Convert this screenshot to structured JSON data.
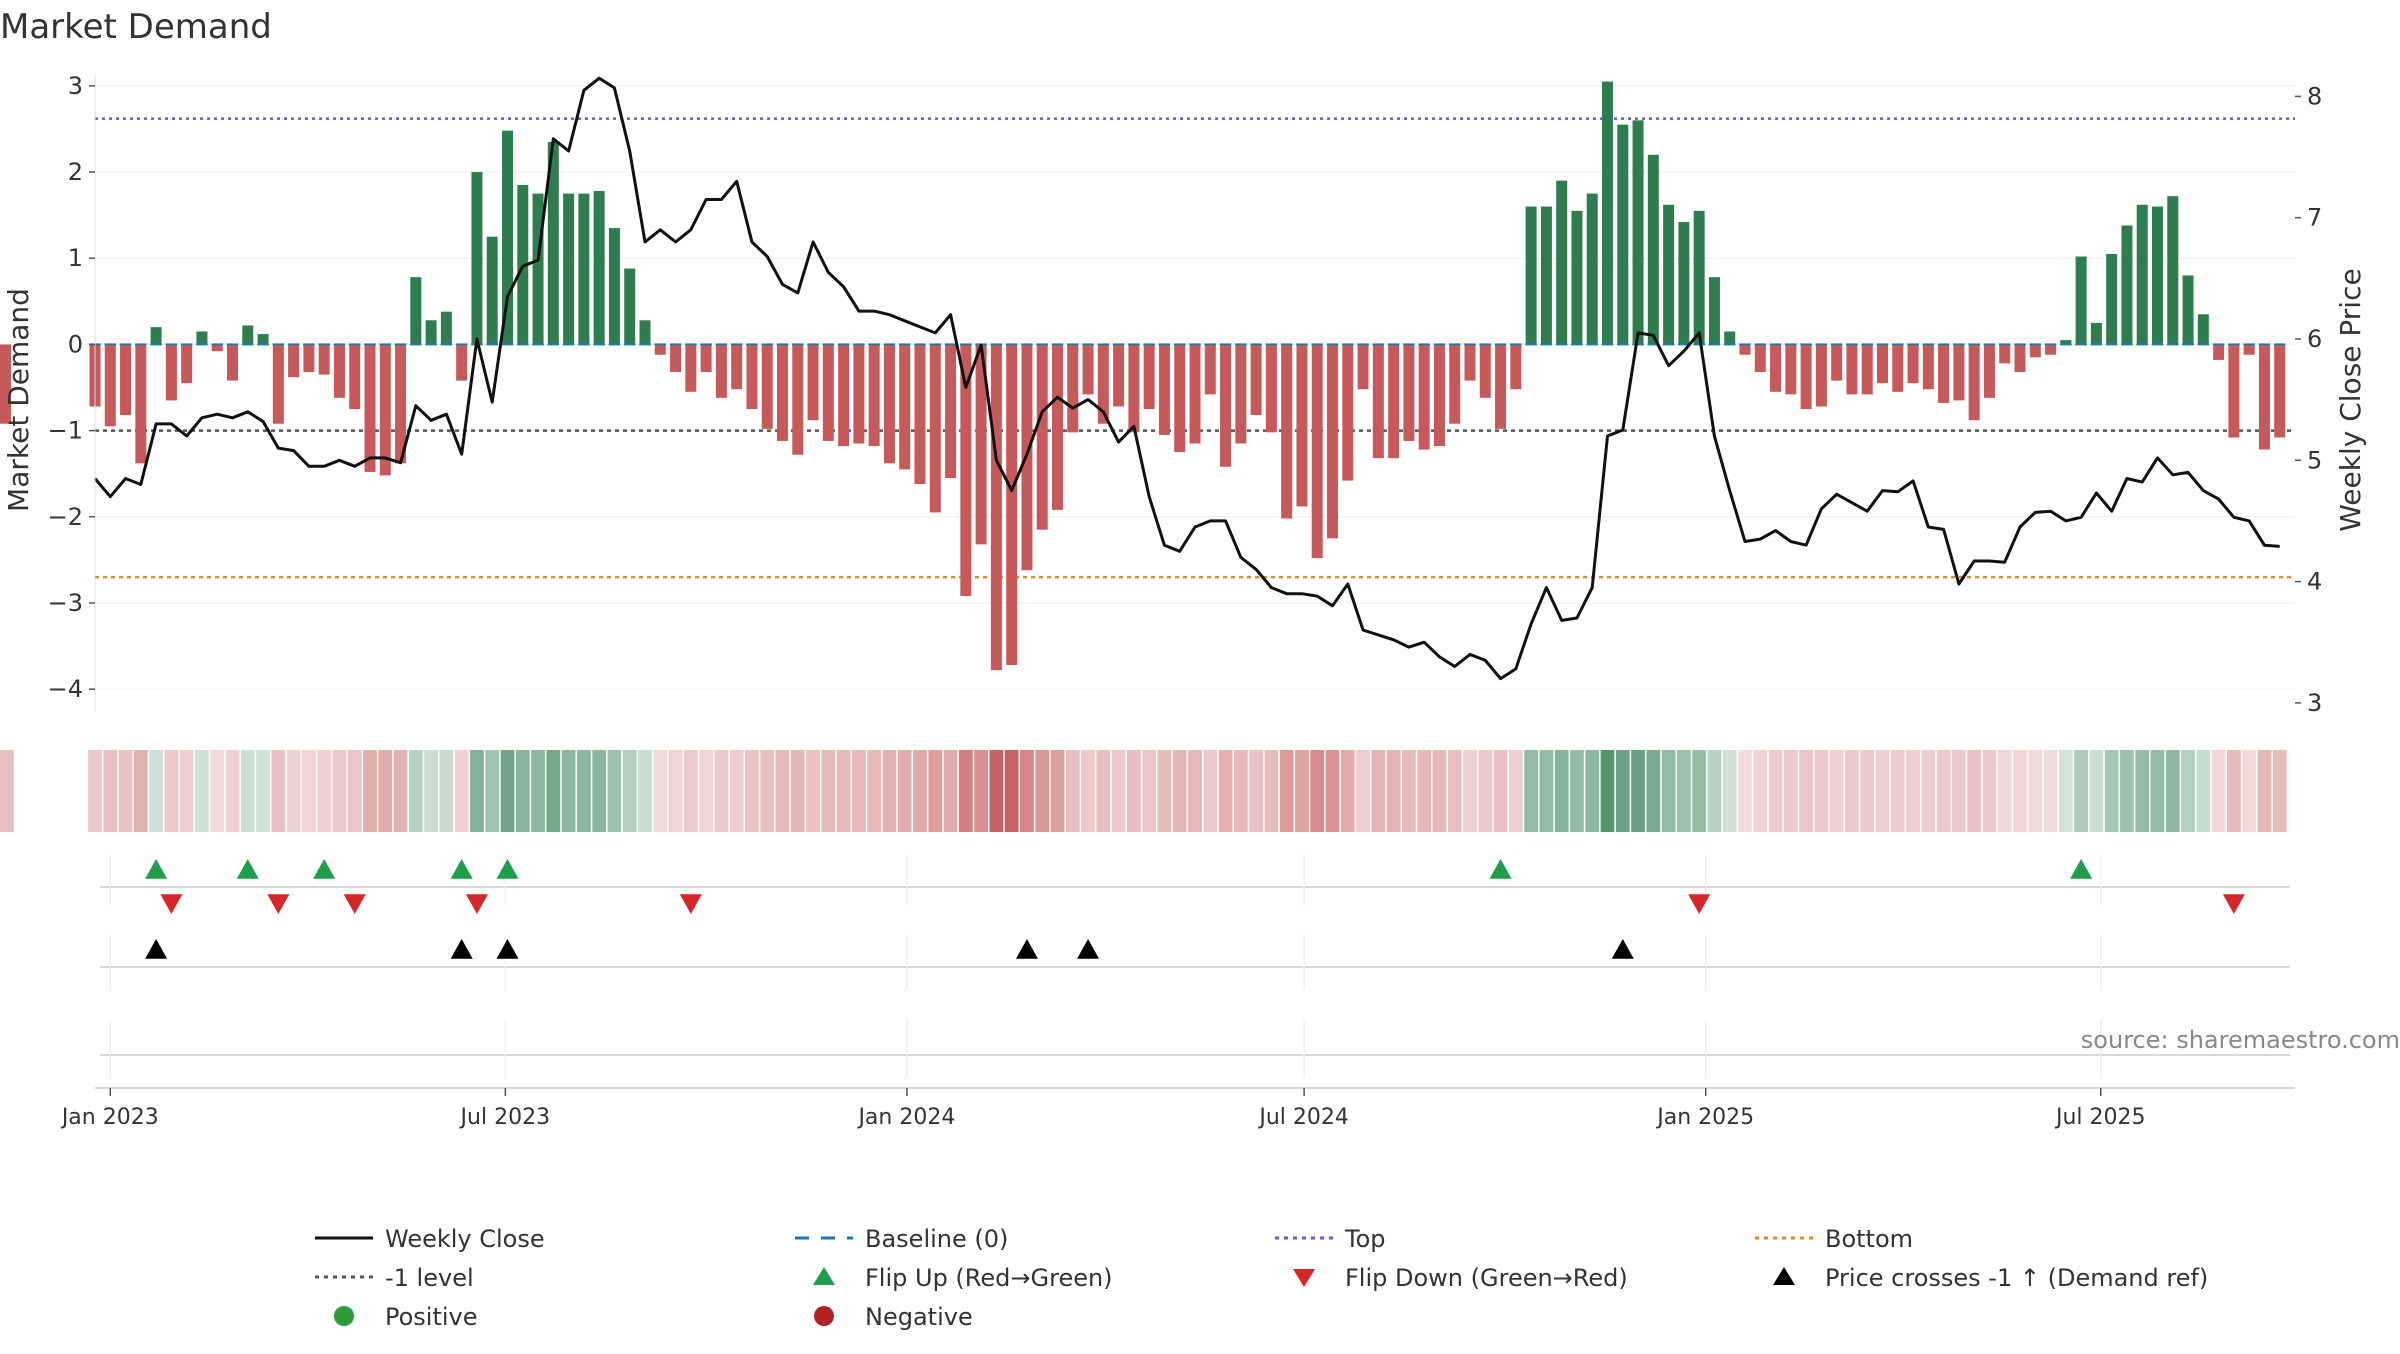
{
  "colors": {
    "positive": "#2e7d4f",
    "negative": "#c65a5a",
    "price": "#111111",
    "baseline": "#1f77b4",
    "top": "#6a5acd",
    "bottom": "#e08a1e",
    "minus_one": "#555555",
    "flip_up": "#1e9e4a",
    "flip_down": "#d62728",
    "cross": "#000000",
    "legend_positive": "#2a9d3a",
    "legend_negative": "#b22222"
  },
  "chart_data": {
    "type": "bar",
    "title": "Market Demand",
    "ylabel": "Market Demand",
    "ylabel_right": "Weekly Close Price",
    "source": "source: sharemaestro.com",
    "ylim": [
      -4.3,
      3.3
    ],
    "ylim_right": [
      2.9,
      8.3
    ],
    "yticks": [
      3,
      2,
      1,
      0,
      -1,
      -2,
      -3,
      -4
    ],
    "yticks_right": [
      8,
      7,
      6,
      5,
      4,
      3
    ],
    "x_start": "2022-12-25",
    "x_end": "2025-09-28",
    "x_ticks": [
      {
        "date": "2023-01-01",
        "label": "Jan 2023"
      },
      {
        "date": "2023-07-01",
        "label": "Jul 2023"
      },
      {
        "date": "2024-01-01",
        "label": "Jan 2024"
      },
      {
        "date": "2024-07-01",
        "label": "Jul 2024"
      },
      {
        "date": "2025-01-01",
        "label": "Jan 2025"
      },
      {
        "date": "2025-07-01",
        "label": "Jul 2025"
      }
    ],
    "reference_lines": {
      "top": 2.62,
      "bottom": -2.7,
      "minus_one": -1,
      "baseline": 0
    },
    "weeks": [
      "2022-12-25",
      "2023-01-01",
      "2023-01-08",
      "2023-01-15",
      "2023-01-22",
      "2023-01-29",
      "2023-02-05",
      "2023-02-12",
      "2023-02-19",
      "2023-02-26",
      "2023-03-05",
      "2023-03-12",
      "2023-03-19",
      "2023-03-26",
      "2023-04-02",
      "2023-04-09",
      "2023-04-16",
      "2023-04-23",
      "2023-04-30",
      "2023-05-07",
      "2023-05-14",
      "2023-05-21",
      "2023-05-28",
      "2023-06-04",
      "2023-06-11",
      "2023-06-18",
      "2023-06-25",
      "2023-07-02",
      "2023-07-09",
      "2023-07-16",
      "2023-07-23",
      "2023-07-30",
      "2023-08-06",
      "2023-08-13",
      "2023-08-20",
      "2023-08-27",
      "2023-09-03",
      "2023-09-10",
      "2023-09-17",
      "2023-09-24",
      "2023-10-01",
      "2023-10-08",
      "2023-10-15",
      "2023-10-22",
      "2023-10-29",
      "2023-11-05",
      "2023-11-12",
      "2023-11-19",
      "2023-11-26",
      "2023-12-03",
      "2023-12-10",
      "2023-12-17",
      "2023-12-24",
      "2023-12-31",
      "2024-01-07",
      "2024-01-14",
      "2024-01-21",
      "2024-01-28",
      "2024-02-04",
      "2024-02-11",
      "2024-02-18",
      "2024-02-25",
      "2024-03-03",
      "2024-03-10",
      "2024-03-17",
      "2024-03-24",
      "2024-03-31",
      "2024-04-07",
      "2024-04-14",
      "2024-04-21",
      "2024-04-28",
      "2024-05-05",
      "2024-05-12",
      "2024-05-19",
      "2024-05-26",
      "2024-06-02",
      "2024-06-09",
      "2024-06-16",
      "2024-06-23",
      "2024-06-30",
      "2024-07-07",
      "2024-07-14",
      "2024-07-21",
      "2024-07-28",
      "2024-08-04",
      "2024-08-11",
      "2024-08-18",
      "2024-08-25",
      "2024-09-01",
      "2024-09-08",
      "2024-09-15",
      "2024-09-22",
      "2024-09-29",
      "2024-10-06",
      "2024-10-13",
      "2024-10-20",
      "2024-10-27",
      "2024-11-03",
      "2024-11-10",
      "2024-11-17",
      "2024-11-24",
      "2024-12-01",
      "2024-12-08",
      "2024-12-15",
      "2024-12-22",
      "2024-12-29",
      "2025-01-05",
      "2025-01-12",
      "2025-01-19",
      "2025-01-26",
      "2025-02-02",
      "2025-02-09",
      "2025-02-16",
      "2025-02-23",
      "2025-03-02",
      "2025-03-09",
      "2025-03-16",
      "2025-03-23",
      "2025-03-30",
      "2025-04-06",
      "2025-04-13",
      "2025-04-20",
      "2025-04-27",
      "2025-05-04",
      "2025-05-11",
      "2025-05-18",
      "2025-05-25",
      "2025-06-01",
      "2025-06-08",
      "2025-06-15",
      "2025-06-22",
      "2025-06-29",
      "2025-07-06",
      "2025-07-13",
      "2025-07-20",
      "2025-07-27",
      "2025-08-03",
      "2025-08-10",
      "2025-08-17",
      "2025-08-24",
      "2025-08-31",
      "2025-09-07",
      "2025-09-14",
      "2025-09-21"
    ],
    "demand": [
      -0.72,
      -0.95,
      -0.82,
      -1.38,
      0.2,
      -0.65,
      -0.45,
      0.15,
      -0.08,
      -0.42,
      0.22,
      0.12,
      -0.92,
      -0.38,
      -0.32,
      -0.35,
      -0.62,
      -0.75,
      -1.48,
      -1.52,
      -1.38,
      0.78,
      0.28,
      0.38,
      -0.42,
      2.0,
      1.25,
      2.48,
      1.85,
      1.75,
      2.35,
      1.75,
      1.75,
      1.78,
      1.35,
      0.88,
      0.28,
      -0.12,
      -0.32,
      -0.55,
      -0.32,
      -0.62,
      -0.52,
      -0.75,
      -0.98,
      -1.12,
      -1.28,
      -0.88,
      -1.12,
      -1.18,
      -1.15,
      -1.18,
      -1.38,
      -1.45,
      -1.62,
      -1.95,
      -1.55,
      -2.92,
      -2.32,
      -3.78,
      -3.72,
      -2.62,
      -2.15,
      -1.92,
      -1.02,
      -0.58,
      -0.92,
      -0.72,
      -1.02,
      -0.75,
      -1.05,
      -1.25,
      -1.15,
      -0.58,
      -1.42,
      -1.15,
      -0.82,
      -1.02,
      -2.02,
      -1.88,
      -2.48,
      -2.25,
      -1.58,
      -0.52,
      -1.32,
      -1.32,
      -1.12,
      -1.22,
      -1.18,
      -0.92,
      -0.42,
      -0.62,
      -0.98,
      -0.52,
      1.6,
      1.6,
      1.9,
      1.55,
      1.75,
      3.05,
      2.55,
      2.6,
      2.2,
      1.62,
      1.42,
      1.55,
      0.78,
      0.15,
      -0.12,
      -0.32,
      -0.55,
      -0.58,
      -0.75,
      -0.72,
      -0.42,
      -0.58,
      -0.58,
      -0.45,
      -0.55,
      -0.45,
      -0.52,
      -0.68,
      -0.65,
      -0.88,
      -0.62,
      -0.22,
      -0.32,
      -0.15,
      -0.12,
      0.05,
      1.02,
      0.25,
      1.05,
      1.38,
      1.62,
      1.6,
      1.72,
      0.8,
      0.35,
      -0.18,
      -1.08,
      -0.12,
      -1.22,
      -1.08,
      -0.92
    ],
    "price": [
      4.85,
      4.7,
      4.85,
      4.8,
      5.3,
      5.3,
      5.2,
      5.35,
      5.38,
      5.35,
      5.4,
      5.32,
      5.1,
      5.08,
      4.95,
      4.95,
      5.0,
      4.95,
      5.02,
      5.02,
      4.98,
      5.45,
      5.33,
      5.38,
      5.05,
      6.0,
      5.48,
      6.35,
      6.6,
      6.65,
      7.65,
      7.55,
      8.05,
      8.15,
      8.07,
      7.55,
      6.8,
      6.9,
      6.8,
      6.9,
      7.15,
      7.15,
      7.3,
      6.8,
      6.68,
      6.45,
      6.38,
      6.8,
      6.55,
      6.43,
      6.23,
      6.23,
      6.2,
      6.15,
      6.1,
      6.05,
      6.2,
      5.6,
      5.95,
      5.0,
      4.75,
      5.05,
      5.4,
      5.52,
      5.43,
      5.5,
      5.4,
      5.15,
      5.28,
      4.7,
      4.3,
      4.25,
      4.45,
      4.5,
      4.5,
      4.2,
      4.1,
      3.95,
      3.9,
      3.9,
      3.88,
      3.8,
      3.98,
      3.6,
      3.56,
      3.52,
      3.46,
      3.5,
      3.38,
      3.3,
      3.4,
      3.35,
      3.2,
      3.28,
      3.65,
      3.95,
      3.68,
      3.7,
      3.95,
      5.2,
      5.25,
      6.05,
      6.03,
      5.78,
      5.9,
      6.05,
      5.2,
      4.75,
      4.33,
      4.35,
      4.42,
      4.33,
      4.3,
      4.6,
      4.72,
      4.65,
      4.58,
      4.75,
      4.74,
      4.83,
      4.45,
      4.43,
      3.98,
      4.17,
      4.17,
      4.16,
      4.45,
      4.57,
      4.58,
      4.5,
      4.53,
      4.73,
      4.58,
      4.85,
      4.82,
      5.02,
      4.88,
      4.9,
      4.75,
      4.68,
      4.53,
      4.5,
      4.3,
      4.29,
      4.38,
      4.45
    ],
    "flip_up": [
      "2023-01-22",
      "2023-03-05",
      "2023-04-09",
      "2023-06-11",
      "2023-07-02",
      "2024-09-29",
      "2025-06-22"
    ],
    "flip_down": [
      "2023-01-29",
      "2023-03-19",
      "2023-04-23",
      "2023-06-18",
      "2023-09-24",
      "2024-12-29",
      "2025-08-31"
    ],
    "price_cross": [
      "2023-01-22",
      "2023-06-11",
      "2023-07-02",
      "2024-02-25",
      "2024-03-24",
      "2024-11-24"
    ],
    "legend": [
      {
        "key": "price",
        "label": "Weekly Close",
        "style": "line"
      },
      {
        "key": "baseline",
        "label": "Baseline (0)",
        "style": "dash"
      },
      {
        "key": "top",
        "label": "Top",
        "style": "dot"
      },
      {
        "key": "bottom",
        "label": "Bottom",
        "style": "dot"
      },
      {
        "key": "minus_one",
        "label": "-1 level",
        "style": "dot"
      },
      {
        "key": "flip_up",
        "label": "Flip Up (Red→Green)",
        "style": "tri-up"
      },
      {
        "key": "flip_down",
        "label": "Flip Down (Green→Red)",
        "style": "tri-down"
      },
      {
        "key": "cross",
        "label": "Price crosses -1 ↑ (Demand ref)",
        "style": "tri-up"
      },
      {
        "key": "legend_positive",
        "label": "Positive",
        "style": "circle"
      },
      {
        "key": "legend_negative",
        "label": "Negative",
        "style": "circle"
      }
    ]
  }
}
